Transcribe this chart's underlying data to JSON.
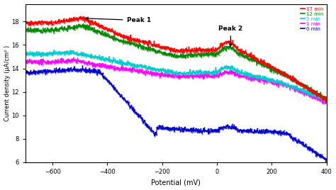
{
  "x_min": -700,
  "x_max": 400,
  "y_min": 6,
  "y_max": 19.5,
  "xlabel": "Potential (mV)",
  "ylabel": "Current density (μA/cm² )",
  "yticks": [
    6,
    8,
    10,
    12,
    14,
    16,
    18
  ],
  "xticks": [
    -600,
    -400,
    -200,
    0,
    200,
    400
  ],
  "legend_labels": [
    "17 min",
    "12 min",
    "5 min",
    "1 min",
    "0 min"
  ],
  "legend_colors": [
    "#ff0000",
    "#008800",
    "#00cccc",
    "#ff00ff",
    "#0000cc"
  ],
  "peak1_label": "Peak 1",
  "peak2_label": "Peak 2",
  "background_color": "#ffffff",
  "noise_amplitude": 0.1
}
